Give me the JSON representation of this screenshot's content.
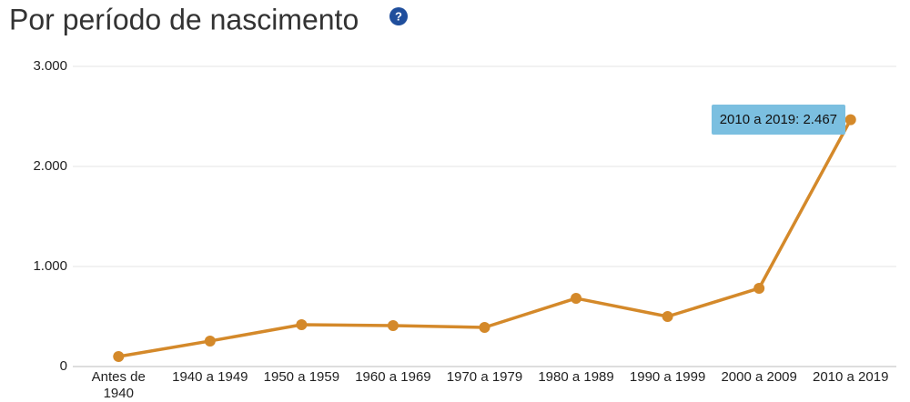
{
  "chart_data": {
    "type": "line",
    "title": "Por período de nascimento",
    "help_icon": "?",
    "categories": [
      "Antes de 1940",
      "1940 a 1949",
      "1950 a 1959",
      "1960 a 1969",
      "1970 a 1979",
      "1980 a 1989",
      "1990 a 1999",
      "2000 a 2009",
      "2010 a 2019"
    ],
    "values": [
      100,
      255,
      418,
      409,
      391,
      682,
      500,
      782,
      2467
    ],
    "color": "#d4892a",
    "ylim": [
      0,
      3000
    ],
    "yticks": [
      0,
      {
        "value": 1000,
        "label": "1.000"
      },
      {
        "value": 2000,
        "label": "2.000"
      },
      {
        "value": 3000,
        "label": "3.000"
      }
    ],
    "grid": true,
    "tooltip": "2010 a 2019: 2.467"
  }
}
